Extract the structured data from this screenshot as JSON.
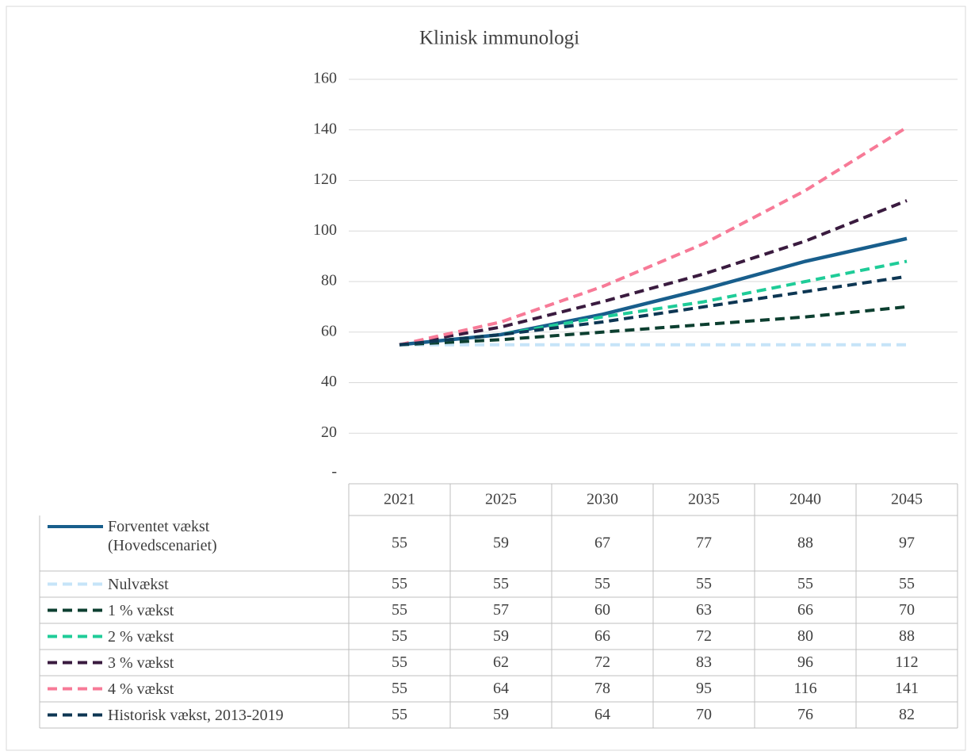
{
  "chart_data": {
    "type": "line",
    "title": "Klinisk immunologi",
    "categories": [
      "2021",
      "2025",
      "2030",
      "2035",
      "2040",
      "2045"
    ],
    "ylim": [
      0,
      160
    ],
    "yticks": [
      {
        "value": 0,
        "label": "-"
      },
      20,
      40,
      60,
      80,
      100,
      120,
      140,
      160
    ],
    "grid": true,
    "series": [
      {
        "name": "Forventet vækst (Hovedscenariet)",
        "color": "#185e8c",
        "dash": false,
        "values": [
          55,
          59,
          67,
          77,
          88,
          97
        ]
      },
      {
        "name": "Nulvækst",
        "color": "#c6e4f8",
        "dash": true,
        "values": [
          55,
          55,
          55,
          55,
          55,
          55
        ]
      },
      {
        "name": "1 % vækst",
        "color": "#0c3f30",
        "dash": true,
        "values": [
          55,
          57,
          60,
          63,
          66,
          70
        ]
      },
      {
        "name": "2 % vækst",
        "color": "#1fcc98",
        "dash": true,
        "values": [
          55,
          59,
          66,
          72,
          80,
          88
        ]
      },
      {
        "name": "3 % vækst",
        "color": "#3a1b3f",
        "dash": true,
        "values": [
          55,
          62,
          72,
          83,
          96,
          112
        ]
      },
      {
        "name": "4 % vækst",
        "color": "#f77a97",
        "dash": true,
        "values": [
          55,
          64,
          78,
          95,
          116,
          141
        ]
      },
      {
        "name": "Historisk vækst, 2013-2019",
        "color": "#0d3653",
        "dash": true,
        "values": [
          55,
          59,
          64,
          70,
          76,
          82
        ]
      }
    ]
  }
}
